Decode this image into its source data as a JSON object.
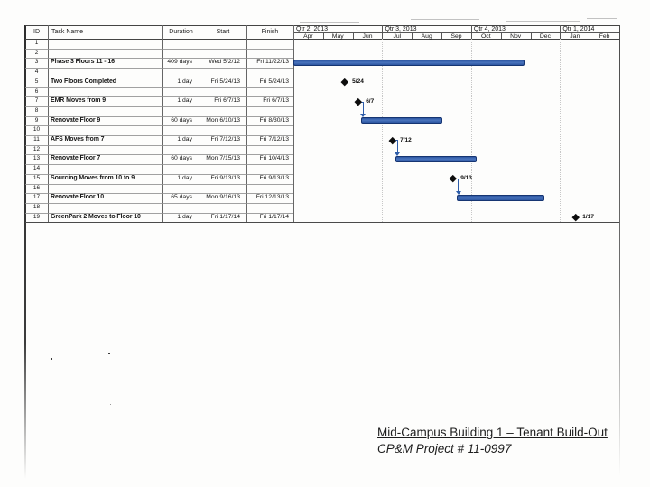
{
  "caption": {
    "line1": "Mid-Campus Building 1 – Tenant Build-Out",
    "line2": "CP&M Project # 11-0997"
  },
  "table": {
    "headers": {
      "id": "ID",
      "task": "Task Name",
      "duration": "Duration",
      "start": "Start",
      "finish": "Finish"
    },
    "rows": [
      {
        "id": "1",
        "task": "",
        "duration": "",
        "start": "",
        "finish": ""
      },
      {
        "id": "2",
        "task": "",
        "duration": "",
        "start": "",
        "finish": ""
      },
      {
        "id": "3",
        "task": "Phase 3 Floors 11 - 16",
        "duration": "409 days",
        "start": "Wed 5/2/12",
        "finish": "Fri 11/22/13"
      },
      {
        "id": "4",
        "task": "",
        "duration": "",
        "start": "",
        "finish": ""
      },
      {
        "id": "5",
        "task": "Two Floors Completed",
        "duration": "1 day",
        "start": "Fri 5/24/13",
        "finish": "Fri 5/24/13"
      },
      {
        "id": "6",
        "task": "",
        "duration": "",
        "start": "",
        "finish": ""
      },
      {
        "id": "7",
        "task": "EMR Moves from 9",
        "duration": "1 day",
        "start": "Fri 6/7/13",
        "finish": "Fri 6/7/13"
      },
      {
        "id": "8",
        "task": "",
        "duration": "",
        "start": "",
        "finish": ""
      },
      {
        "id": "9",
        "task": "Renovate Floor 9",
        "duration": "60 days",
        "start": "Mon 6/10/13",
        "finish": "Fri 8/30/13"
      },
      {
        "id": "10",
        "task": "",
        "duration": "",
        "start": "",
        "finish": ""
      },
      {
        "id": "11",
        "task": "AFS Moves from 7",
        "duration": "1 day",
        "start": "Fri 7/12/13",
        "finish": "Fri 7/12/13"
      },
      {
        "id": "12",
        "task": "",
        "duration": "",
        "start": "",
        "finish": ""
      },
      {
        "id": "13",
        "task": "Renovate Floor 7",
        "duration": "60 days",
        "start": "Mon 7/15/13",
        "finish": "Fri 10/4/13"
      },
      {
        "id": "14",
        "task": "",
        "duration": "",
        "start": "",
        "finish": ""
      },
      {
        "id": "15",
        "task": "Sourcing Moves from 10 to 9",
        "duration": "1 day",
        "start": "Fri 9/13/13",
        "finish": "Fri 9/13/13"
      },
      {
        "id": "16",
        "task": "",
        "duration": "",
        "start": "",
        "finish": ""
      },
      {
        "id": "17",
        "task": "Renovate Floor 10",
        "duration": "65 days",
        "start": "Mon 9/16/13",
        "finish": "Fri 12/13/13"
      },
      {
        "id": "18",
        "task": "",
        "duration": "",
        "start": "",
        "finish": ""
      },
      {
        "id": "19",
        "task": "GreenPark 2 Moves to Floor 10",
        "duration": "1 day",
        "start": "Fri 1/17/14",
        "finish": "Fri 1/17/14"
      }
    ]
  },
  "timeline": {
    "quarters": [
      {
        "label": "Qtr 2, 2013",
        "months": [
          "Apr",
          "May",
          "Jun"
        ]
      },
      {
        "label": "Qtr 3, 2013",
        "months": [
          "Jul",
          "Aug",
          "Sep"
        ]
      },
      {
        "label": "Qtr 4, 2013",
        "months": [
          "Oct",
          "Nov",
          "Dec"
        ]
      },
      {
        "label": "Qtr 1, 2014",
        "months": [
          "Jan",
          "Feb"
        ]
      }
    ],
    "range_start": "2013-04-01",
    "visible_months": 11
  },
  "chart_data": {
    "type": "gantt",
    "title": "Mid-Campus Building 1 – Tenant Build-Out schedule",
    "timeline_start": "2013-04-01",
    "timeline_end": "2014-03-01",
    "tasks": [
      {
        "row": 3,
        "name": "Phase 3 Floors 11 - 16",
        "kind": "bar",
        "start": "2012-05-02",
        "finish": "2013-11-22"
      },
      {
        "row": 5,
        "name": "Two Floors Completed",
        "kind": "milestone",
        "date": "2013-05-24",
        "label": "5/24"
      },
      {
        "row": 7,
        "name": "EMR Moves from 9",
        "kind": "milestone",
        "date": "2013-06-07",
        "label": "6/7",
        "connector_to_row": 9
      },
      {
        "row": 9,
        "name": "Renovate Floor 9",
        "kind": "bar",
        "start": "2013-06-10",
        "finish": "2013-08-30"
      },
      {
        "row": 11,
        "name": "AFS Moves from 7",
        "kind": "milestone",
        "date": "2013-07-12",
        "label": "7/12",
        "connector_to_row": 13
      },
      {
        "row": 13,
        "name": "Renovate Floor 7",
        "kind": "bar",
        "start": "2013-07-15",
        "finish": "2013-10-04"
      },
      {
        "row": 15,
        "name": "Sourcing Moves from 10 to 9",
        "kind": "milestone",
        "date": "2013-09-13",
        "label": "9/13",
        "connector_to_row": 17
      },
      {
        "row": 17,
        "name": "Renovate Floor 10",
        "kind": "bar",
        "start": "2013-09-16",
        "finish": "2013-12-13"
      },
      {
        "row": 19,
        "name": "GreenPark 2 Moves to Floor 10",
        "kind": "milestone",
        "date": "2014-01-17",
        "label": "1/17"
      }
    ]
  },
  "colors": {
    "bar_fill": "#4a74bd",
    "bar_border": "#163572",
    "milestone": "#0d0d0d",
    "connector": "#2d5ca8",
    "grid_dark": "#444444",
    "grid_mid": "#909090",
    "grid_light": "#c7c7c7"
  }
}
